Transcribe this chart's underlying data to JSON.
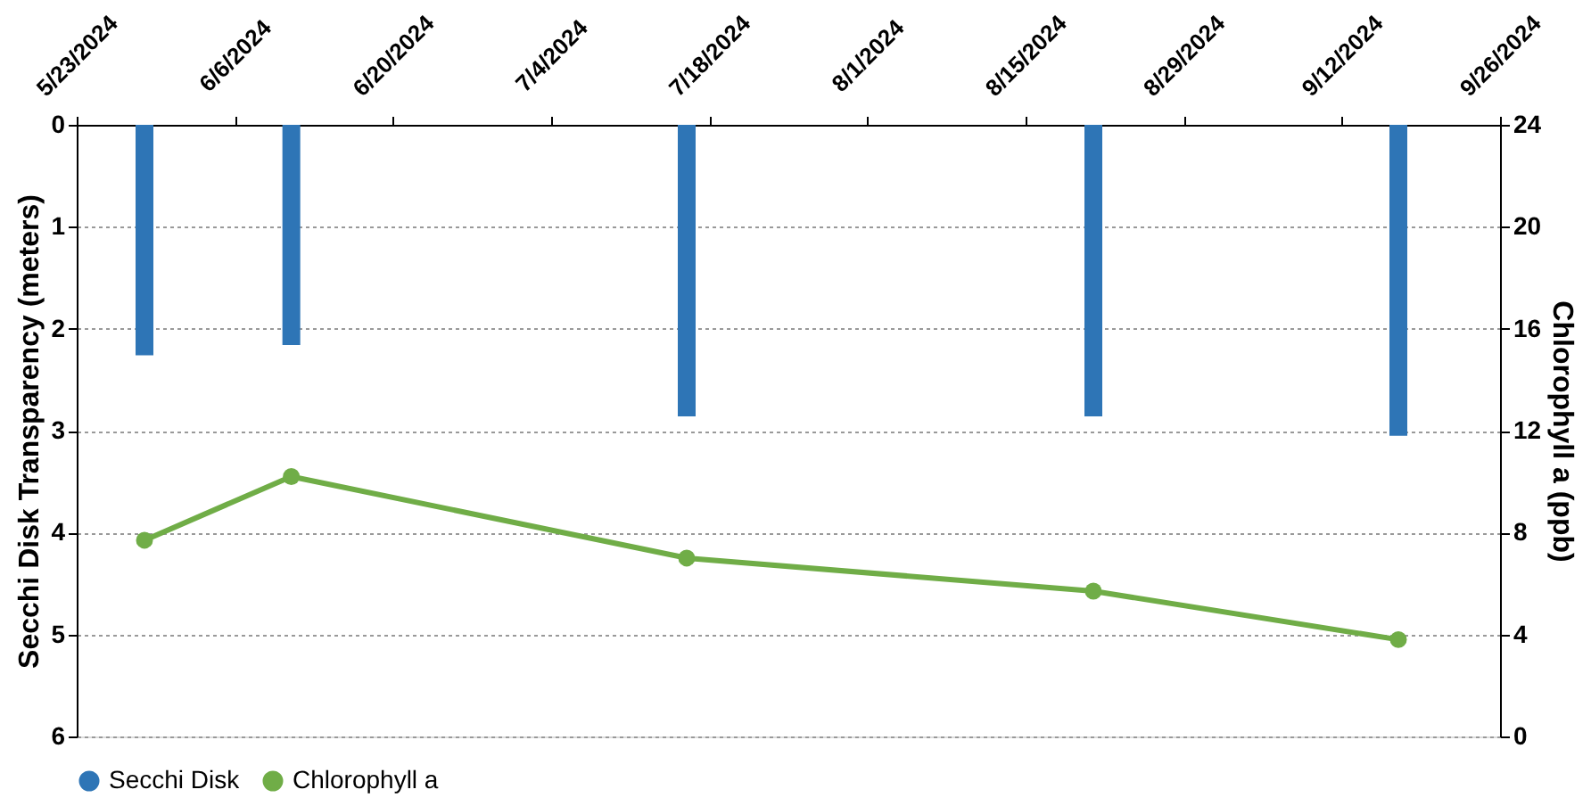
{
  "chart_data": {
    "type": "bar",
    "x": [
      "2024-05-29",
      "2024-06-11",
      "2024-07-16",
      "2024-08-21",
      "2024-09-17"
    ],
    "xlim": [
      "2024-05-23",
      "2024-09-26"
    ],
    "xticks": [
      {
        "value": "2024-05-23",
        "label": "5/23/2024"
      },
      {
        "value": "2024-06-06",
        "label": "6/6/2024"
      },
      {
        "value": "2024-06-20",
        "label": "6/20/2024"
      },
      {
        "value": "2024-07-04",
        "label": "7/4/2024"
      },
      {
        "value": "2024-07-18",
        "label": "7/18/2024"
      },
      {
        "value": "2024-08-01",
        "label": "8/1/2024"
      },
      {
        "value": "2024-08-15",
        "label": "8/15/2024"
      },
      {
        "value": "2024-08-29",
        "label": "8/29/2024"
      },
      {
        "value": "2024-09-12",
        "label": "9/12/2024"
      },
      {
        "value": "2024-09-26",
        "label": "9/26/2024"
      }
    ],
    "ylabel": "Secchi Disk Transparency (meters)",
    "y2label": "Chlorophyll a (ppb)",
    "ylim": [
      6,
      0
    ],
    "yticks": [
      0,
      1,
      2,
      3,
      4,
      5,
      6
    ],
    "y2lim": [
      0,
      24
    ],
    "y2ticks": [
      0,
      4,
      8,
      12,
      16,
      20,
      24
    ],
    "series": [
      {
        "name": "Secchi Disk",
        "color": "#2e75b6",
        "values": [
          2.26,
          2.16,
          2.86,
          2.86,
          3.05
        ]
      },
      {
        "name": "Chlorophyll a",
        "type": "line",
        "axis": "y2",
        "color": "#70ad47",
        "marker": "circle",
        "values": [
          7.7,
          10.2,
          7.0,
          5.7,
          3.8
        ]
      }
    ],
    "grid": "y",
    "legend": "bottom"
  }
}
